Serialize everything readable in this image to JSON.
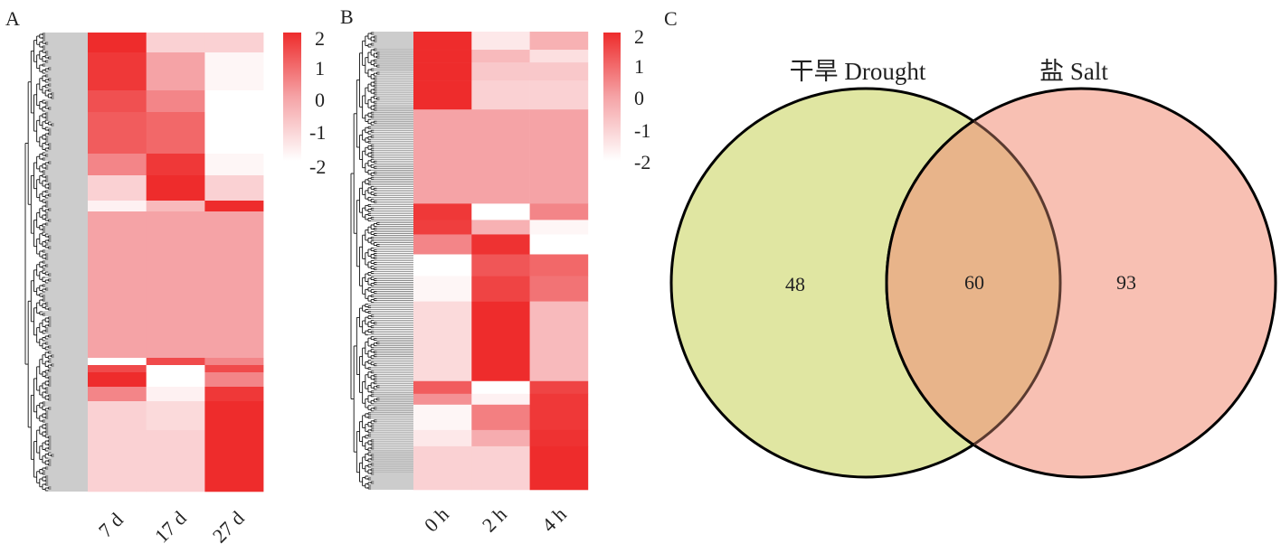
{
  "chart_data": [
    {
      "type": "heatmap",
      "panel_label": "A",
      "columns": [
        "7 d",
        "17 d",
        "27 d"
      ],
      "value_range": [
        -2,
        2
      ],
      "colorbar_ticks": [
        "2",
        "1",
        "0",
        "-1",
        "-2"
      ],
      "colors": {
        "low": "#ffffff",
        "mid": "#f5a3a6",
        "high": "#ee2c2c"
      },
      "row_blocks": [
        {
          "genes": 11,
          "values": [
            2,
            -1,
            -1
          ]
        },
        {
          "genes": 21,
          "values": [
            1.8,
            0,
            -1.8
          ]
        },
        {
          "genes": 12,
          "values": [
            1.4,
            0.5,
            -2
          ]
        },
        {
          "genes": 23,
          "values": [
            1.2,
            1,
            -2
          ]
        },
        {
          "genes": 12,
          "values": [
            0.5,
            1.8,
            -1.8
          ]
        },
        {
          "genes": 14,
          "values": [
            -1,
            2,
            -1
          ]
        },
        {
          "genes": 6,
          "values": [
            -1.7,
            -0.5,
            2
          ]
        },
        {
          "genes": 81,
          "values": [
            0,
            0,
            0
          ]
        },
        {
          "genes": 4,
          "values": [
            -2,
            1.5,
            0.5
          ]
        },
        {
          "genes": 4,
          "values": [
            1.5,
            -2,
            1.5
          ]
        },
        {
          "genes": 8,
          "values": [
            2,
            -2,
            0.5
          ]
        },
        {
          "genes": 8,
          "values": [
            0.5,
            -1.7,
            1.8
          ]
        },
        {
          "genes": 16,
          "values": [
            -1,
            -1.2,
            2
          ]
        },
        {
          "genes": 34,
          "values": [
            -1,
            -1,
            2
          ]
        }
      ]
    },
    {
      "type": "heatmap",
      "panel_label": "B",
      "columns": [
        "0 h",
        "2 h",
        "4 h"
      ],
      "value_range": [
        -2,
        2
      ],
      "colorbar_ticks": [
        "2",
        "1",
        "0",
        "-1",
        "-2"
      ],
      "colors": {
        "low": "#ffffff",
        "mid": "#f5a3a6",
        "high": "#ee2c2c"
      },
      "row_blocks": [
        {
          "genes": 10,
          "values": [
            2,
            -1.5,
            -0.3
          ]
        },
        {
          "genes": 7,
          "values": [
            2,
            -0.5,
            -1.3
          ]
        },
        {
          "genes": 10,
          "values": [
            2,
            -0.8,
            -0.8
          ]
        },
        {
          "genes": 16,
          "values": [
            2,
            -1,
            -1
          ]
        },
        {
          "genes": 52,
          "values": [
            0,
            0,
            0
          ]
        },
        {
          "genes": 9,
          "values": [
            1.8,
            -2,
            0.5
          ]
        },
        {
          "genes": 8,
          "values": [
            1.7,
            -0.3,
            -1.8
          ]
        },
        {
          "genes": 11,
          "values": [
            0.5,
            1.9,
            -2
          ]
        },
        {
          "genes": 12,
          "values": [
            -2,
            1.3,
            1
          ]
        },
        {
          "genes": 14,
          "values": [
            -1.8,
            1.6,
            0.8
          ]
        },
        {
          "genes": 44,
          "values": [
            -1.2,
            2,
            -0.5
          ]
        },
        {
          "genes": 7,
          "values": [
            1.2,
            -2,
            1.6
          ]
        },
        {
          "genes": 6,
          "values": [
            0.3,
            -1.7,
            1.8
          ]
        },
        {
          "genes": 14,
          "values": [
            -1.8,
            0.6,
            1.8
          ]
        },
        {
          "genes": 9,
          "values": [
            -1.5,
            -0.2,
            1.9
          ]
        },
        {
          "genes": 24,
          "values": [
            -1,
            -1,
            2
          ]
        }
      ]
    },
    {
      "type": "venn",
      "panel_label": "C",
      "sets": [
        {
          "name": "干旱 Drought",
          "only": "48",
          "color": "#e0e6a2"
        },
        {
          "name": "盐 Salt",
          "only": "93",
          "color": "#f8c0b3"
        }
      ],
      "intersection": "60",
      "intersection_color": "#e8b48a"
    }
  ]
}
